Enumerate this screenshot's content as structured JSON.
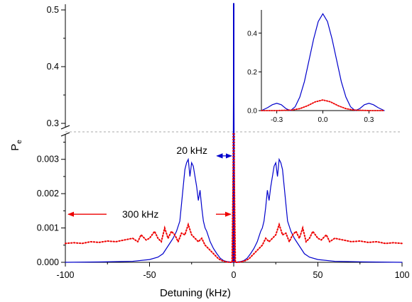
{
  "chart_data": {
    "type": "line",
    "xlabel": "Detuning (kHz)",
    "ylabel": "P",
    "ylabel_subscript": "e",
    "xlim": [
      -100,
      100
    ],
    "x_ticks": [
      "-100",
      "-50",
      "0",
      "50",
      "100"
    ],
    "x_tick_values": [
      -100,
      -50,
      0,
      50,
      100
    ],
    "y_axis_broken": true,
    "y_lower_range": [
      0,
      0.0038
    ],
    "y_upper_range": [
      0.285,
      0.51
    ],
    "y_lower_ticks": [
      "0.000",
      "0.001",
      "0.002",
      "0.003"
    ],
    "y_lower_tick_values": [
      0,
      0.001,
      0.002,
      0.003
    ],
    "y_upper_ticks": [
      "0.3",
      "0.4",
      "0.5"
    ],
    "y_upper_tick_values": [
      0.3,
      0.4,
      0.5
    ],
    "colors": {
      "blue": "#0000cc",
      "red": "#ee0000",
      "annot_arrow_blue": "#0000cc",
      "annot_arrow_red": "#ee0000",
      "break_line": "#aaaaaa"
    },
    "series": [
      {
        "color": "blue",
        "style": "solid",
        "x": [
          -100,
          -80,
          -60,
          -50,
          -45,
          -42,
          -40,
          -38,
          -36,
          -34,
          -32,
          -30,
          -29,
          -28,
          -27,
          -26,
          -25,
          -24,
          -23,
          -22,
          -21,
          -20,
          -19,
          -18,
          -17,
          -16,
          -14,
          -12,
          -10,
          -8,
          -6,
          -4,
          -2,
          -1,
          -0.5,
          0,
          0.5,
          1,
          2,
          4,
          6,
          8,
          10,
          12,
          14,
          16,
          17,
          18,
          19,
          20,
          21,
          22,
          23,
          24,
          25,
          26,
          27,
          28,
          29,
          30,
          32,
          34,
          36,
          38,
          40,
          42,
          45,
          50,
          60,
          80,
          100
        ],
        "y": [
          0,
          1e-05,
          3e-05,
          8e-05,
          0.00015,
          0.00025,
          0.0004,
          0.00055,
          0.0007,
          0.0009,
          0.0012,
          0.0022,
          0.0027,
          0.0029,
          0.003,
          0.0025,
          0.0029,
          0.0028,
          0.0025,
          0.0022,
          0.0018,
          0.0021,
          0.0016,
          0.0012,
          0.001,
          0.0009,
          0.0006,
          0.0004,
          0.00025,
          0.00012,
          5e-05,
          2e-05,
          1e-05,
          0.0,
          0.0,
          0.5,
          0.0,
          0.0,
          1e-05,
          2e-05,
          5e-05,
          0.00012,
          0.00025,
          0.0004,
          0.0006,
          0.0009,
          0.001,
          0.0012,
          0.0016,
          0.0021,
          0.0018,
          0.0022,
          0.0025,
          0.0028,
          0.0029,
          0.0025,
          0.003,
          0.0029,
          0.0027,
          0.0022,
          0.0012,
          0.0009,
          0.0007,
          0.00055,
          0.0004,
          0.00025,
          0.00015,
          8e-05,
          3e-05,
          1e-05,
          0
        ]
      },
      {
        "color": "red",
        "style": "dotted",
        "x": [
          -100,
          -95,
          -90,
          -85,
          -80,
          -75,
          -70,
          -65,
          -60,
          -57,
          -55,
          -52,
          -50,
          -47,
          -45,
          -43,
          -41,
          -39,
          -37,
          -35,
          -33,
          -31,
          -29,
          -27,
          -25,
          -23,
          -21,
          -19,
          -17,
          -15,
          -13,
          -11,
          -9,
          -7,
          -5,
          -3,
          -1,
          0,
          1,
          3,
          5,
          7,
          9,
          11,
          13,
          15,
          17,
          19,
          21,
          23,
          25,
          27,
          29,
          31,
          33,
          35,
          37,
          39,
          41,
          43,
          45,
          47,
          50,
          52,
          55,
          57,
          60,
          65,
          70,
          75,
          80,
          85,
          90,
          95,
          100
        ],
        "y": [
          0.00055,
          0.00057,
          0.00055,
          0.0006,
          0.00058,
          0.00062,
          0.0006,
          0.00065,
          0.0007,
          0.0006,
          0.0008,
          0.00065,
          0.0007,
          0.0009,
          0.0007,
          0.0006,
          0.001,
          0.0007,
          0.0009,
          0.0008,
          0.0006,
          0.00085,
          0.0008,
          0.0011,
          0.0008,
          0.0007,
          0.0006,
          0.0007,
          0.0005,
          0.0004,
          0.0003,
          0.0002,
          0.0001,
          5e-05,
          2e-05,
          0.0,
          0.0,
          0.055,
          0.0,
          0.0,
          2e-05,
          5e-05,
          0.0001,
          0.0002,
          0.0003,
          0.0004,
          0.0005,
          0.0007,
          0.0006,
          0.0007,
          0.0008,
          0.0011,
          0.0008,
          0.00085,
          0.0006,
          0.0008,
          0.0009,
          0.0007,
          0.001,
          0.0006,
          0.0007,
          0.0009,
          0.0007,
          0.00065,
          0.0008,
          0.0006,
          0.0007,
          0.00065,
          0.0006,
          0.00062,
          0.00058,
          0.0006,
          0.00055,
          0.00057,
          0.00055
        ]
      }
    ],
    "annotations": [
      {
        "text": "20 kHz",
        "arrow": "double",
        "color": "blue",
        "x_from": -10,
        "x_to": 0,
        "y": 0.0031
      },
      {
        "text": "300 kHz",
        "arrow_left": true,
        "arrow_right": true,
        "color": "red",
        "y": 0.0014
      }
    ],
    "inset": {
      "xlim": [
        -0.4,
        0.4
      ],
      "ylim": [
        0,
        0.52
      ],
      "x_ticks": [
        "-0.3",
        "0.0",
        "0.3"
      ],
      "x_tick_values": [
        -0.3,
        0.0,
        0.3
      ],
      "y_ticks": [
        "0.0",
        "0.2",
        "0.4"
      ],
      "y_tick_values": [
        0.0,
        0.2,
        0.4
      ],
      "series": [
        {
          "color": "blue",
          "style": "solid",
          "x": [
            -0.4,
            -0.36,
            -0.33,
            -0.3,
            -0.27,
            -0.24,
            -0.21,
            -0.18,
            -0.15,
            -0.12,
            -0.09,
            -0.06,
            -0.03,
            0,
            0.03,
            0.06,
            0.09,
            0.12,
            0.15,
            0.18,
            0.21,
            0.24,
            0.27,
            0.3,
            0.33,
            0.36,
            0.4
          ],
          "y": [
            0.0,
            0.015,
            0.03,
            0.038,
            0.03,
            0.01,
            0.0,
            0.02,
            0.07,
            0.15,
            0.26,
            0.37,
            0.46,
            0.5,
            0.46,
            0.37,
            0.26,
            0.15,
            0.07,
            0.02,
            0.0,
            0.01,
            0.03,
            0.038,
            0.03,
            0.015,
            0.0
          ]
        },
        {
          "color": "red",
          "style": "dotted",
          "x": [
            -0.4,
            -0.3,
            -0.2,
            -0.15,
            -0.1,
            -0.05,
            0,
            0.05,
            0.1,
            0.15,
            0.2,
            0.3,
            0.4
          ],
          "y": [
            0.0,
            0.0,
            0.003,
            0.01,
            0.025,
            0.045,
            0.055,
            0.045,
            0.025,
            0.01,
            0.003,
            0.0,
            0.0
          ]
        }
      ]
    }
  }
}
